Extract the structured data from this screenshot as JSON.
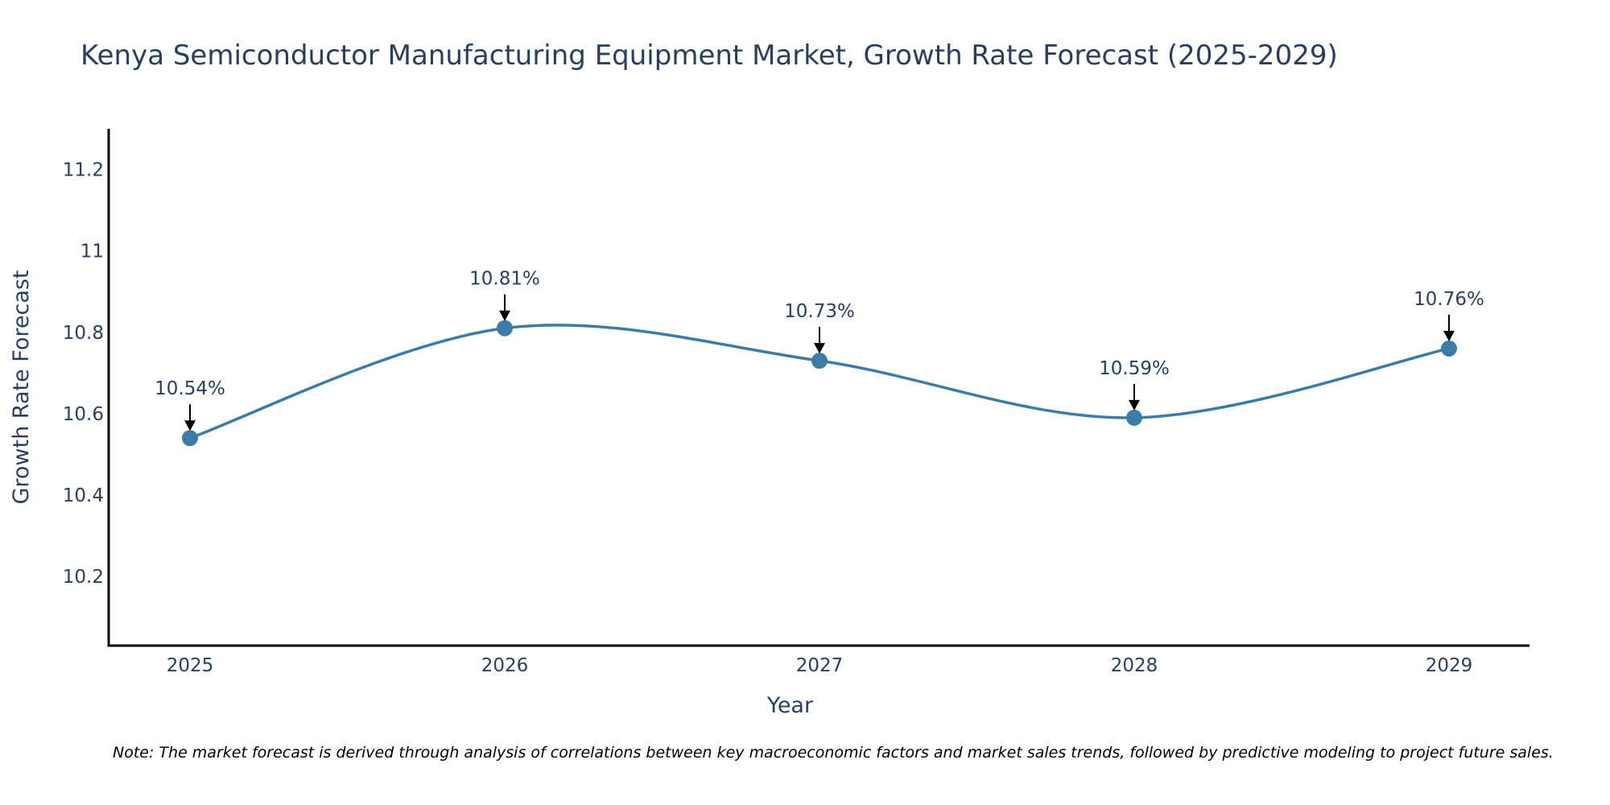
{
  "chart_data": {
    "type": "line",
    "title": "Kenya Semiconductor Manufacturing Equipment Market, Growth Rate Forecast (2025-2029)",
    "xlabel": "Year",
    "ylabel": "Growth Rate Forecast",
    "categories": [
      "2025",
      "2026",
      "2027",
      "2028",
      "2029"
    ],
    "values": [
      10.54,
      10.81,
      10.73,
      10.59,
      10.76
    ],
    "data_labels": [
      "10.54%",
      "10.81%",
      "10.73%",
      "10.59%",
      "10.76%"
    ],
    "y_ticks": [
      "10.2",
      "10.4",
      "10.6",
      "10.8",
      "11",
      "11.2"
    ],
    "y_tick_values": [
      10.2,
      10.4,
      10.6,
      10.8,
      11.0,
      11.2
    ],
    "ylim": [
      10.03,
      11.3
    ],
    "grid": false,
    "line_color": "#3d7ba8",
    "marker_color": "#3d7ba8",
    "annotation_arrow_color": "#000000",
    "note": "Note: The market forecast is derived through analysis of correlations between key macroeconomic factors and market sales trends, followed by predictive modeling to project future sales."
  }
}
